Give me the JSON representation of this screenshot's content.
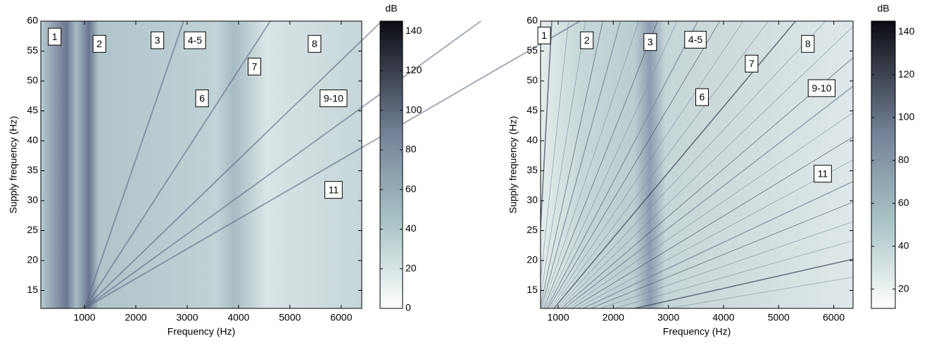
{
  "chart_data": [
    {
      "type": "heatmap",
      "xlabel": "Frequency (Hz)",
      "ylabel": "Supply frequency (Hz)",
      "xlim": [
        150,
        6400
      ],
      "ylim": [
        12,
        60
      ],
      "xticks": [
        1000,
        2000,
        3000,
        4000,
        5000,
        6000
      ],
      "yticks": [
        15,
        20,
        25,
        30,
        35,
        40,
        45,
        50,
        55,
        60
      ],
      "colorbar": {
        "label": "dB",
        "lim": [
          0,
          145
        ],
        "ticks": [
          0,
          20,
          40,
          60,
          80,
          100,
          120,
          140
        ]
      },
      "annotations": [
        {
          "text": "1",
          "x": 420,
          "y": 57.4
        },
        {
          "text": "2",
          "x": 1290,
          "y": 56.2
        },
        {
          "text": "3",
          "x": 2420,
          "y": 56.8
        },
        {
          "text": "4-5",
          "x": 3150,
          "y": 56.8
        },
        {
          "text": "6",
          "x": 3290,
          "y": 47.1
        },
        {
          "text": "7",
          "x": 4310,
          "y": 52.4
        },
        {
          "text": "8",
          "x": 5480,
          "y": 56.2
        },
        {
          "text": "9-10",
          "x": 5850,
          "y": 47.1
        },
        {
          "text": "11",
          "x": 5850,
          "y": 31.8
        }
      ]
    },
    {
      "type": "heatmap",
      "xlabel": "Frequency (Hz)",
      "ylabel": "Supply frequency (Hz)",
      "xlim": [
        680,
        6350
      ],
      "ylim": [
        12,
        60
      ],
      "xticks": [
        1000,
        2000,
        3000,
        4000,
        5000,
        6000
      ],
      "yticks": [
        15,
        20,
        25,
        30,
        35,
        40,
        45,
        50,
        55,
        60
      ],
      "colorbar": {
        "label": "dB",
        "lim": [
          11,
          145
        ],
        "ticks": [
          20,
          40,
          60,
          80,
          100,
          120,
          140
        ]
      },
      "annotations": [
        {
          "text": "1",
          "x": 745,
          "y": 57.6
        },
        {
          "text": "2",
          "x": 1520,
          "y": 56.8
        },
        {
          "text": "3",
          "x": 2670,
          "y": 56.5
        },
        {
          "text": "4-5",
          "x": 3490,
          "y": 56.9
        },
        {
          "text": "6",
          "x": 3610,
          "y": 47.3
        },
        {
          "text": "7",
          "x": 4510,
          "y": 52.9
        },
        {
          "text": "8",
          "x": 5530,
          "y": 56.2
        },
        {
          "text": "9-10",
          "x": 5780,
          "y": 48.8
        },
        {
          "text": "11",
          "x": 5800,
          "y": 34.5
        }
      ]
    }
  ]
}
